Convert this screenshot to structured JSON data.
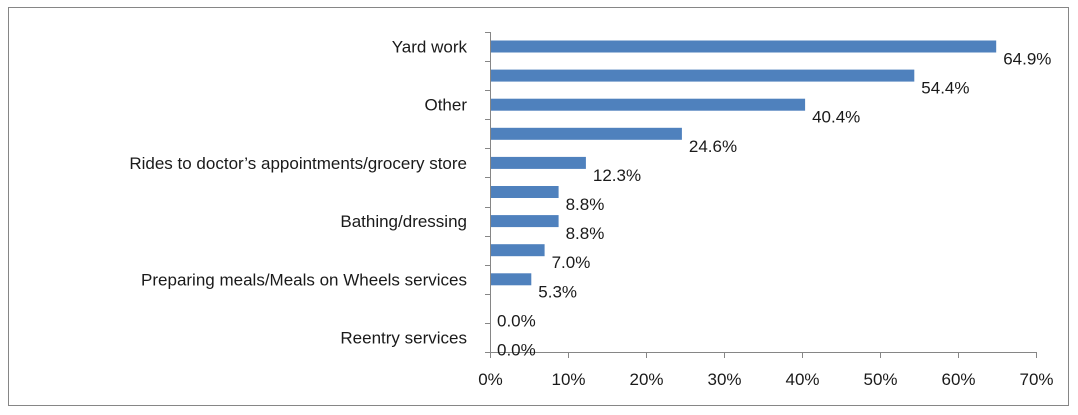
{
  "chart_data": {
    "type": "bar",
    "orientation": "horizontal",
    "title": "",
    "xlabel": "",
    "ylabel": "",
    "categories": [
      "Yard work",
      "",
      "Other",
      "",
      "Rides to doctor’s appointments/grocery store",
      "",
      "Bathing/dressing",
      "",
      "Preparing meals/Meals on Wheels services",
      "",
      "Reentry services"
    ],
    "values": [
      64.9,
      54.4,
      40.4,
      24.6,
      12.3,
      8.8,
      8.8,
      7.0,
      5.3,
      0.0,
      0.0
    ],
    "value_labels": [
      "64.9%",
      "54.4%",
      "40.4%",
      "24.6%",
      "12.3%",
      "8.8%",
      "8.8%",
      "7.0%",
      "5.3%",
      "0.0%",
      "0.0%"
    ],
    "xlim": [
      0,
      70
    ],
    "x_ticks": [
      0,
      10,
      20,
      30,
      40,
      50,
      60,
      70
    ],
    "x_tick_labels": [
      "0%",
      "10%",
      "20%",
      "30%",
      "40%",
      "50%",
      "60%",
      "70%"
    ],
    "grid": false,
    "legend": "none",
    "bar_color": "#4f81bd"
  }
}
